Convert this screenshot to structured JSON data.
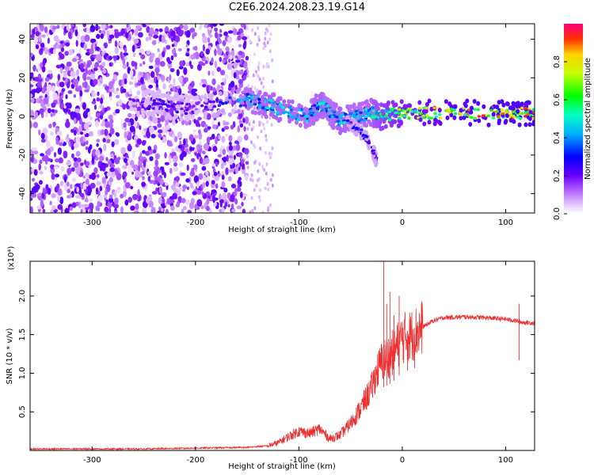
{
  "title": "C2E6.2024.208.23.19.G14",
  "colors": {
    "snr_line": "#ee3030",
    "axis": "#000000"
  },
  "chart_data": [
    {
      "type": "heatmap",
      "xlabel": "Height of straight line (km)",
      "ylabel": "Frequency (Hz)",
      "xlim": [
        -360,
        128
      ],
      "ylim": [
        -50,
        48
      ],
      "x_ticks": [
        -300,
        -200,
        -100,
        0,
        100
      ],
      "y_ticks": [
        -40,
        -20,
        0,
        20,
        40
      ],
      "x_tick_labels": [
        "-300",
        "-200",
        "-100",
        "0",
        "100"
      ],
      "y_tick_labels": [
        "-40",
        "-20",
        "0",
        "20",
        "40"
      ],
      "colorbar": {
        "label": "Normalized spectral amplitude",
        "range": [
          0,
          1
        ],
        "ticks": [
          0.0,
          0.2,
          0.4,
          0.6,
          0.8
        ],
        "tick_labels": [
          "0.0",
          "0.2",
          "0.4",
          "0.6",
          "0.8"
        ],
        "colormap": "rainbow (white-violet-blue-cyan-green-yellow-red)"
      },
      "features": [
        {
          "region": "noise",
          "x_range": [
            -360,
            -150
          ],
          "freq_range": [
            -50,
            48
          ],
          "amplitude": 0.2
        },
        {
          "region": "signal_track",
          "x": [
            -265,
            -240,
            -220,
            -200,
            -150,
            -130,
            -110,
            -90,
            -80,
            -70,
            -60,
            -45,
            -30,
            -20,
            0,
            50,
            100,
            128
          ],
          "freq": [
            6,
            7,
            5,
            4,
            9,
            6,
            2,
            0,
            7,
            2,
            -2,
            0,
            2,
            0,
            2,
            2,
            2,
            2
          ],
          "amplitude": [
            0.2,
            0.25,
            0.25,
            0.2,
            0.45,
            0.5,
            0.5,
            0.45,
            0.5,
            0.45,
            0.5,
            0.45,
            0.5,
            0.6,
            0.7,
            0.85,
            0.9,
            0.9
          ]
        },
        {
          "region": "doppler_tail",
          "x": [
            -55,
            -40,
            -30,
            -25
          ],
          "freq": [
            -2,
            -8,
            -15,
            -23
          ],
          "amplitude": 0.3
        }
      ]
    },
    {
      "type": "line",
      "xlabel": "Height of straight line (km)",
      "ylabel": "SNR (10 * v/v)",
      "y_scale_label": "(x10⁴)",
      "xlim": [
        -360,
        128
      ],
      "ylim": [
        0,
        2.45
      ],
      "x_ticks": [
        -300,
        -200,
        -100,
        0,
        100
      ],
      "y_ticks": [
        0.5,
        1.0,
        1.5,
        2.0
      ],
      "x_tick_labels": [
        "-300",
        "-200",
        "-100",
        "0",
        "100"
      ],
      "y_tick_labels": [
        "0.5",
        "1.0",
        "1.5",
        "2.0"
      ],
      "series": [
        {
          "x": [
            -360,
            -300,
            -250,
            -200,
            -150,
            -130,
            -120,
            -110,
            -100,
            -90,
            -80,
            -70,
            -60,
            -50,
            -40,
            -30,
            -25,
            -20,
            -15,
            -10,
            -5,
            0,
            10,
            20,
            30,
            40,
            60,
            80,
            100,
            110,
            115,
            128
          ],
          "y": [
            0.02,
            0.02,
            0.02,
            0.03,
            0.04,
            0.06,
            0.1,
            0.18,
            0.25,
            0.22,
            0.28,
            0.15,
            0.2,
            0.35,
            0.55,
            0.8,
            1.0,
            1.15,
            1.2,
            1.25,
            1.35,
            1.45,
            1.5,
            1.6,
            1.68,
            1.72,
            1.73,
            1.72,
            1.7,
            1.68,
            1.66,
            1.65
          ]
        }
      ],
      "spikes": {
        "x": [
          -18,
          -15,
          -12,
          -8,
          -3,
          5,
          12,
          113
        ],
        "y": [
          2.5,
          1.9,
          2.05,
          1.75,
          2.0,
          1.55,
          1.5,
          1.9
        ]
      }
    }
  ]
}
